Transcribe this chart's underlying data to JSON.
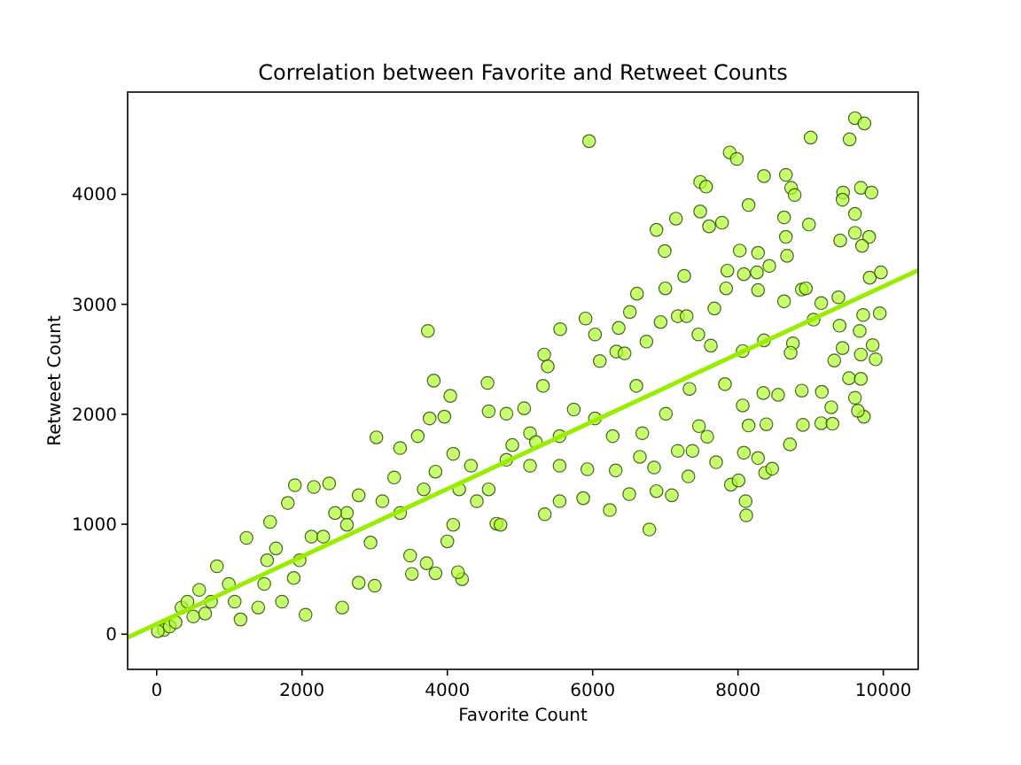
{
  "chart_data": {
    "type": "scatter",
    "title": "Correlation between Favorite and Retweet Counts",
    "xlabel": "Favorite Count",
    "ylabel": "Retweet Count",
    "xlim": [
      -400,
      10480
    ],
    "ylim": [
      -320,
      4930
    ],
    "xticks": [
      0,
      2000,
      4000,
      6000,
      8000,
      10000
    ],
    "yticks": [
      0,
      1000,
      2000,
      3000,
      4000
    ],
    "grid": false,
    "series": [
      {
        "marker": "circle",
        "color": "#adff2f",
        "x": [
          5951,
          9610,
          9740,
          9000,
          9536,
          7886,
          7984,
          7480,
          7561,
          8358,
          8659,
          8732,
          8780,
          9447,
          9691,
          9837,
          8146,
          9439,
          9610,
          7480,
          7602,
          7780,
          7146,
          6878,
          6992,
          8634,
          8659,
          8976,
          9407,
          9610,
          9805,
          9707,
          8024,
          8276,
          8675,
          8431,
          8081,
          8260,
          7854,
          7260,
          9813,
          9967,
          8878,
          8935,
          8634,
          8276,
          7837,
          7000,
          6610,
          9146,
          9382,
          7675,
          9723,
          9951,
          6512,
          7171,
          7293,
          5902,
          6935,
          9040,
          9398,
          9675,
          5553,
          3732,
          6032,
          6358,
          7455,
          8358,
          8756,
          9853,
          9439,
          9691,
          9894,
          9325,
          8065,
          8724,
          6740,
          7626,
          6325,
          6439,
          6098,
          5333,
          5382,
          3813,
          9528,
          9691,
          7821,
          9610,
          4041,
          8349,
          8552,
          9154,
          8065,
          8878,
          9732,
          9650,
          9284,
          8146,
          8390,
          8894,
          9146,
          9300,
          8715,
          7577,
          7699,
          8081,
          8276,
          8374,
          8471,
          7902,
          8008,
          8105,
          8114,
          6780,
          6236,
          6504,
          6878,
          7089,
          7317,
          7171,
          7374,
          7463,
          6650,
          6845,
          6317,
          5927,
          5870,
          5545,
          5341,
          5545,
          6276,
          6683,
          7008,
          7333,
          6601,
          6032,
          5138,
          4813,
          4569,
          4553,
          5317,
          5057,
          5740,
          4813,
          5138,
          4675,
          4732,
          4203,
          4146,
          3837,
          3512,
          3715,
          3488,
          2553,
          2049,
          3000,
          2780,
          4000,
          4081,
          4406,
          4163,
          3837,
          3350,
          3024,
          3593,
          3756,
          3959,
          3350,
          2618,
          2374,
          1902,
          2163,
          1805,
          1561,
          1236,
          1520,
          1886,
          1724,
          1398,
          1154,
          829,
          585,
          341,
          98,
          179,
          260,
          504,
          748,
          992,
          1642,
          2130,
          2618,
          2943,
          3106,
          2780,
          2455,
          1967,
          1480,
          1073,
          2293,
          3268,
          3675,
          4325,
          4569,
          5219,
          5545,
          4894,
          4081,
          423,
          667,
          16
        ],
        "values": [
          4484,
          4693,
          4645,
          4516,
          4500,
          4381,
          4322,
          4113,
          4070,
          4166,
          4177,
          4059,
          3994,
          4016,
          4059,
          4016,
          3903,
          3951,
          3822,
          3844,
          3709,
          3742,
          3779,
          3677,
          3484,
          3790,
          3613,
          3726,
          3580,
          3650,
          3613,
          3532,
          3489,
          3468,
          3441,
          3349,
          3274,
          3290,
          3306,
          3258,
          3242,
          3290,
          3134,
          3145,
          3027,
          3129,
          3145,
          3145,
          3097,
          3011,
          3064,
          2962,
          2903,
          2919,
          2930,
          2892,
          2892,
          2871,
          2839,
          2860,
          2806,
          2758,
          2774,
          2758,
          2726,
          2785,
          2726,
          2672,
          2645,
          2629,
          2602,
          2543,
          2500,
          2489,
          2575,
          2559,
          2661,
          2624,
          2570,
          2554,
          2484,
          2543,
          2435,
          2306,
          2328,
          2322,
          2274,
          2150,
          2167,
          2193,
          2177,
          2204,
          2080,
          2215,
          1978,
          2032,
          2064,
          1898,
          1909,
          1903,
          1919,
          1914,
          1726,
          1796,
          1564,
          1650,
          1602,
          1468,
          1505,
          1360,
          1398,
          1210,
          1081,
          952,
          1129,
          1274,
          1301,
          1263,
          1435,
          1667,
          1667,
          1892,
          1613,
          1516,
          1489,
          1500,
          1237,
          1210,
          1091,
          1801,
          1801,
          1828,
          2005,
          2231,
          2258,
          1962,
          1828,
          2005,
          2027,
          2285,
          2258,
          2054,
          2043,
          1586,
          1532,
          1005,
          995,
          500,
          564,
          554,
          548,
          645,
          715,
          242,
          177,
          441,
          468,
          844,
          995,
          1210,
          1317,
          1478,
          1693,
          1790,
          1801,
          1962,
          1978,
          1102,
          1102,
          1371,
          1355,
          1339,
          1193,
          1021,
          876,
          672,
          511,
          296,
          242,
          134,
          618,
          403,
          242,
          38,
          70,
          108,
          161,
          296,
          457,
          780,
          887,
          995,
          833,
          1210,
          1263,
          1102,
          672,
          457,
          296,
          887,
          1425,
          1317,
          1532,
          1317,
          1747,
          1532,
          1720,
          1640,
          296,
          188,
          27
        ]
      },
      {
        "type": "line",
        "color": "#99ee00",
        "x": [
          -400,
          10480
        ],
        "values": [
          -30,
          3310
        ]
      }
    ]
  }
}
